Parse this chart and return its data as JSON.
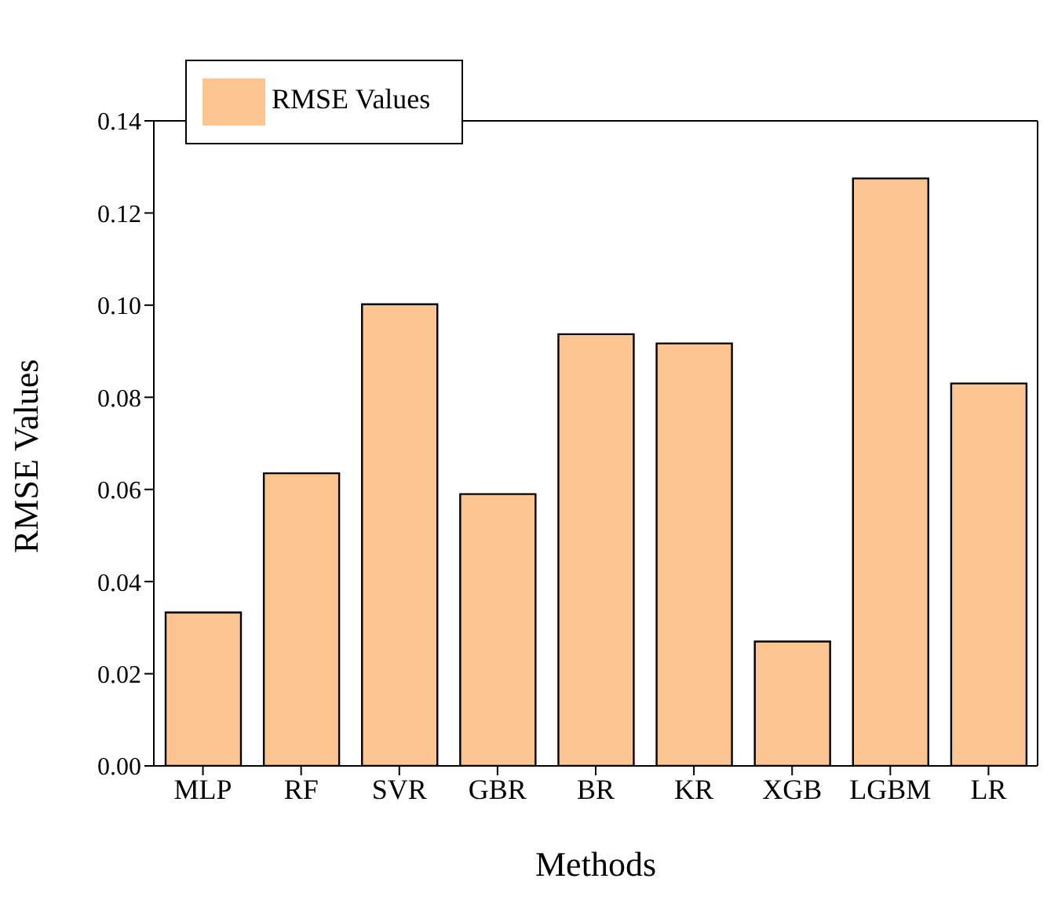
{
  "chart_data": {
    "type": "bar",
    "xlabel": "Methods",
    "ylabel": "RMSE Values",
    "categories": [
      "MLP",
      "RF",
      "SVR",
      "GBR",
      "BR",
      "KR",
      "XGB",
      "LGBM",
      "LR"
    ],
    "series": [
      {
        "name": "RMSE Values",
        "color": "#fbc491",
        "values": [
          0.0333,
          0.0635,
          0.1002,
          0.059,
          0.0937,
          0.0917,
          0.027,
          0.1275,
          0.083
        ]
      }
    ],
    "ylim": [
      0,
      0.14
    ],
    "yticks": [
      {
        "value": 0,
        "label": "0.00"
      },
      {
        "value": 0.02,
        "label": "0.02"
      },
      {
        "value": 0.04,
        "label": "0.04"
      },
      {
        "value": 0.06,
        "label": "0.06"
      },
      {
        "value": 0.08,
        "label": "0.08"
      },
      {
        "value": 0.1,
        "label": "0.10"
      },
      {
        "value": 0.12,
        "label": "0.12"
      },
      {
        "value": 0.14,
        "label": "0.14"
      }
    ],
    "legend": "top left"
  }
}
